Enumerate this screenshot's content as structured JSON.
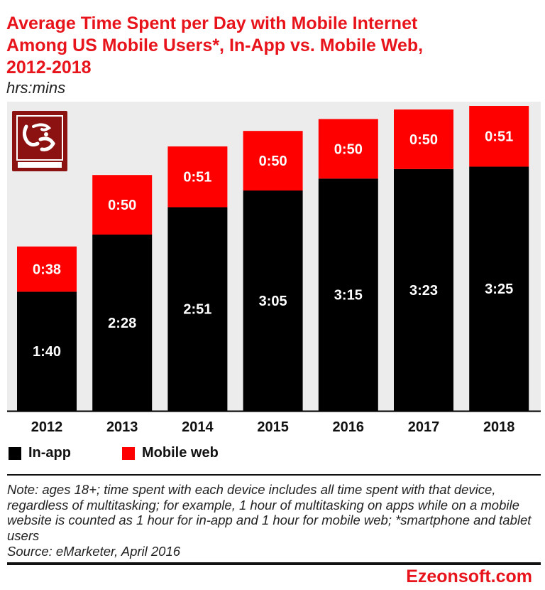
{
  "header": {
    "title": "Average Time Spent per Day with Mobile Internet\nAmong US Mobile Users*, In-App vs. Mobile Web,\n2012-2018",
    "subtitle": "hrs:mins"
  },
  "colors": {
    "in_app": "#000000",
    "mobile_web": "#ff0000",
    "title": "#e8141b",
    "plot_bg": "#ececec"
  },
  "chart_data": {
    "type": "bar",
    "stacked": true,
    "title": "Average Time Spent per Day with Mobile Internet Among US Mobile Users*, In-App vs. Mobile Web, 2012-2018",
    "unit": "hrs:mins",
    "categories": [
      "2012",
      "2013",
      "2014",
      "2015",
      "2016",
      "2017",
      "2018"
    ],
    "series": [
      {
        "name": "In-app",
        "values": [
          100,
          148,
          171,
          185,
          195,
          203,
          205
        ],
        "labels": [
          "1:40",
          "2:28",
          "2:51",
          "3:05",
          "3:15",
          "3:23",
          "3:25"
        ]
      },
      {
        "name": "Mobile web",
        "values": [
          38,
          50,
          51,
          50,
          50,
          50,
          51
        ],
        "labels": [
          "0:38",
          "0:50",
          "0:51",
          "0:50",
          "0:50",
          "0:50",
          "0:51"
        ]
      }
    ],
    "ylim": [
      0,
      256
    ],
    "grid": false,
    "legend": "bottom-left"
  },
  "legend": {
    "items": [
      "In-app",
      "Mobile web"
    ]
  },
  "footer": {
    "note": "Note: ages 18+; time spent with each device includes all time spent with that device, regardless of multitasking; for example, 1 hour of multitasking on apps while on a mobile website is counted as 1 hour for in-app and 1 hour for mobile web; *smartphone and tablet users",
    "source": "Source: eMarketer, April 2016",
    "watermark": "Ezeonsoft.com",
    "logo_text": "EZEONSOFT"
  }
}
